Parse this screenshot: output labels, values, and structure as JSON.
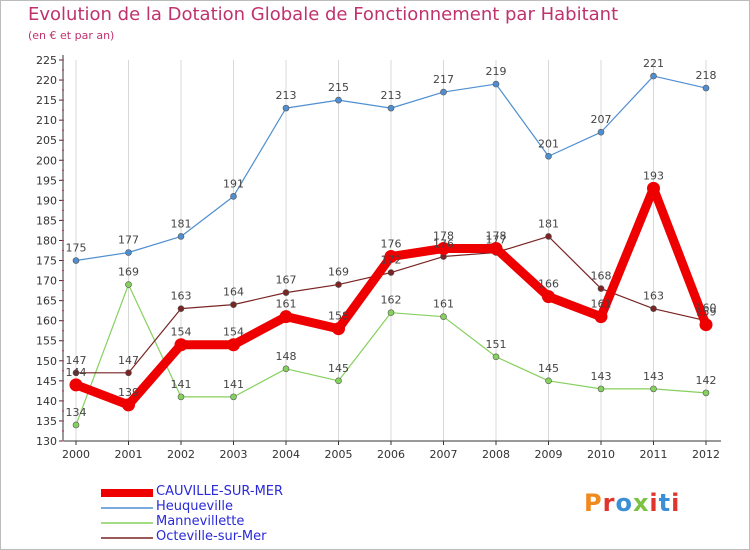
{
  "header": {
    "title": "Evolution de la Dotation Globale de Fonctionnement par Habitant",
    "subtitle": "(en € et par an)"
  },
  "logo": {
    "text": "Proxiti",
    "colors": [
      "#f08a1e",
      "#e0342c",
      "#3a8fd6",
      "#7cc242",
      "#e0342c",
      "#3a8fd6",
      "#e0342c"
    ]
  },
  "colors": {
    "title": "#c0326e",
    "legend_text": "#2a2ad8",
    "grid": "#d8d8d8",
    "axis": "#333333"
  },
  "chart_data": {
    "type": "line",
    "title": "Evolution de la Dotation Globale de Fonctionnement par Habitant",
    "subtitle": "(en € et par an)",
    "x": [
      "2000",
      "2001",
      "2002",
      "2003",
      "2004",
      "2005",
      "2006",
      "2007",
      "2008",
      "2009",
      "2010",
      "2011",
      "2012"
    ],
    "ylim": [
      130,
      225
    ],
    "yticks": [
      130,
      135,
      140,
      145,
      150,
      155,
      160,
      165,
      170,
      175,
      180,
      185,
      190,
      195,
      200,
      205,
      210,
      215,
      220,
      225
    ],
    "grid": "vertical",
    "legend": "bottom-left",
    "series": [
      {
        "name": "CAUVILLE-SUR-MER",
        "color": "#ee0000",
        "highlight": true,
        "values": [
          144,
          139,
          154,
          154,
          161,
          158,
          176,
          178,
          178,
          166,
          161,
          193,
          159
        ],
        "labels": [
          "144",
          "139",
          "154",
          "154",
          "161",
          "158",
          "176",
          "178",
          "178",
          "166",
          "161",
          "193",
          "159"
        ]
      },
      {
        "name": "Heuqueville",
        "color": "#4f8fd1",
        "highlight": false,
        "values": [
          175,
          177,
          181,
          191,
          213,
          215,
          213,
          217,
          219,
          201,
          207,
          221,
          218
        ],
        "labels": [
          "175",
          "177",
          "181",
          "191",
          "213",
          "215",
          "213",
          "217",
          "219",
          "201",
          "207",
          "221",
          "218"
        ]
      },
      {
        "name": "Mannevillette",
        "color": "#86d05e",
        "highlight": false,
        "values": [
          134,
          169,
          141,
          141,
          148,
          145,
          162,
          161,
          151,
          145,
          143,
          143,
          142
        ],
        "labels": [
          "134",
          "169",
          "141",
          "141",
          "148",
          "145",
          "162",
          "161",
          "151",
          "145",
          "143",
          "143",
          "142"
        ]
      },
      {
        "name": "Octeville-sur-Mer",
        "color": "#7a2424",
        "highlight": false,
        "values": [
          147,
          147,
          163,
          164,
          167,
          169,
          172,
          176,
          177,
          181,
          168,
          163,
          160
        ],
        "labels": [
          "147",
          "147",
          "163",
          "164",
          "167",
          "169",
          "172",
          "176",
          "177",
          "181",
          "168",
          "163",
          "160"
        ]
      }
    ]
  }
}
